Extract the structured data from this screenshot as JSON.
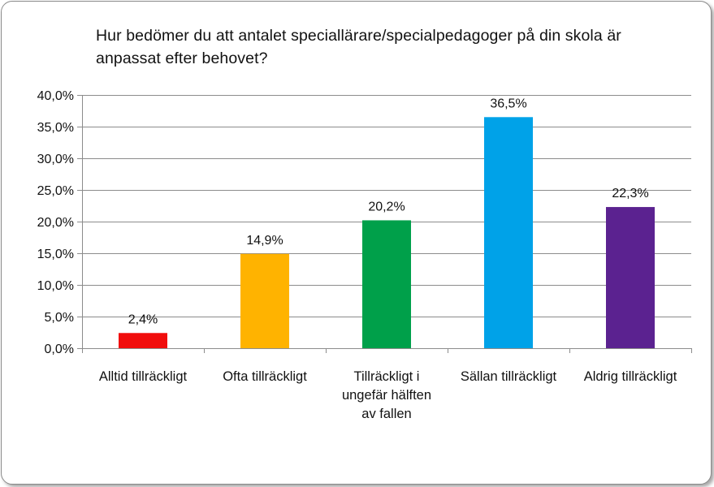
{
  "chart_data": {
    "type": "bar",
    "title": "Hur bedömer du att antalet speciallärare/specialpedagoger på din skola är anpassat efter behovet?",
    "categories": [
      [
        "Alltid tillräckligt"
      ],
      [
        "Ofta tillräckligt"
      ],
      [
        "Tillräckligt i",
        "ungefär hälften",
        "av fallen"
      ],
      [
        "Sällan tillräckligt"
      ],
      [
        "Aldrig tillräckligt"
      ]
    ],
    "values": [
      2.4,
      14.9,
      20.2,
      36.5,
      22.3
    ],
    "data_labels": [
      "2,4%",
      "14,9%",
      "20,2%",
      "36,5%",
      "22,3%"
    ],
    "colors": [
      "#f10d0c",
      "#ffb300",
      "#00a04a",
      "#00a2e8",
      "#5b2290"
    ],
    "ylim": [
      0,
      40
    ],
    "yticks": [
      0,
      5,
      10,
      15,
      20,
      25,
      30,
      35,
      40
    ],
    "ytick_labels": [
      "0,0%",
      "5,0%",
      "10,0%",
      "15,0%",
      "20,0%",
      "25,0%",
      "30,0%",
      "35,0%",
      "40,0%"
    ],
    "grid": true,
    "legend": "none"
  }
}
